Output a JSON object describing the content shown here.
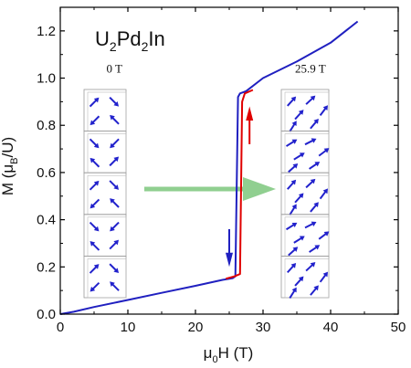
{
  "chart_data": {
    "type": "line",
    "title": "",
    "compound": {
      "base1": "U",
      "sub1": "2",
      "base2": "Pd",
      "sub2": "2",
      "base3": "In"
    },
    "xlabel": {
      "prefix": "μ",
      "sub": "0",
      "rest": "H (T)"
    },
    "ylabel": {
      "prefix": "M (μ",
      "sub": "B",
      "rest": "/U)"
    },
    "xlim": [
      0,
      50
    ],
    "ylim": [
      0,
      1.3
    ],
    "x_ticks": [
      "0",
      "10",
      "20",
      "30",
      "40",
      "50"
    ],
    "y_ticks": [
      "0.0",
      "0.2",
      "0.4",
      "0.6",
      "0.8",
      "1.0",
      "1.2"
    ],
    "grid": false,
    "series": [
      {
        "color": "#2020c0",
        "x": [
          0,
          2,
          5,
          10,
          15,
          20,
          24,
          25.5,
          25.9,
          26.3,
          26.6,
          27.5,
          30,
          35,
          40,
          44
        ],
        "y": [
          0.0,
          0.01,
          0.03,
          0.06,
          0.09,
          0.12,
          0.145,
          0.152,
          0.16,
          0.92,
          0.935,
          0.945,
          1.0,
          1.07,
          1.15,
          1.24
        ]
      },
      {
        "color": "#e00000",
        "x": [
          24.5,
          25.8,
          26.6,
          26.9,
          27.3,
          28.5
        ],
        "y": [
          0.15,
          0.16,
          0.17,
          0.9,
          0.935,
          0.95
        ]
      }
    ],
    "annotations": [
      {
        "text": "0 T",
        "x": 8,
        "y": 1.0
      },
      {
        "text": "25.9 T",
        "x": 37,
        "y": 1.0
      }
    ],
    "colors": {
      "field_arrow": "#90cf90",
      "up_arrow": "#e00000",
      "down_arrow": "#2020c0",
      "spin": "#2222cc",
      "cell_box": "#999999"
    }
  }
}
